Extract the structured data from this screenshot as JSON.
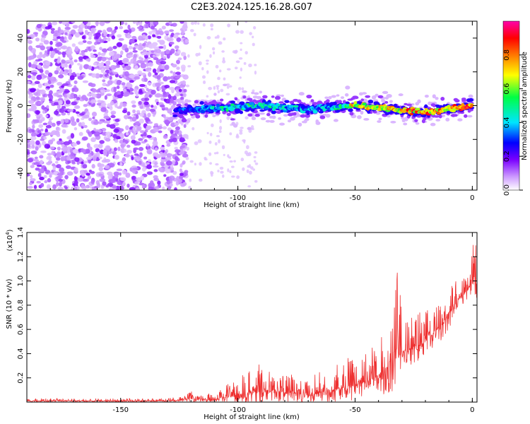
{
  "title": "C2E3.2024.125.16.28.G07",
  "chart_data": [
    {
      "type": "heatmap",
      "xlabel": "Height of straight line (km)",
      "ylabel": "Frequency (Hz)",
      "xlim": [
        -190,
        2
      ],
      "ylim": [
        -50,
        50
      ],
      "xticks": [
        -150,
        -100,
        -50,
        0
      ],
      "yticks": [
        -40,
        -20,
        0,
        20,
        40
      ],
      "grid": false,
      "colorbar": {
        "label": "Normalized spectral amplitude",
        "range": [
          0.0,
          1.0
        ],
        "ticks": [
          "0.0",
          "0.2",
          "0.4",
          "0.6",
          "0.8"
        ],
        "colormap": [
          "#ffffff",
          "#cc99ff",
          "#7a00ff",
          "#0000ff",
          "#00e5ff",
          "#00ff44",
          "#ffff00",
          "#ff7700",
          "#ff0000",
          "#ff00aa"
        ]
      },
      "ridge": {
        "x": [
          -127,
          -120,
          -110,
          -100,
          -90,
          -80,
          -70,
          -60,
          -55,
          -50,
          -40,
          -30,
          -20,
          -10,
          0
        ],
        "y": [
          -3,
          -2,
          -1.5,
          -1,
          0,
          -1,
          -2,
          -1.5,
          0,
          0,
          -1,
          -3,
          -4,
          -2,
          0
        ],
        "peak_amplitude": [
          0.35,
          0.45,
          0.5,
          0.55,
          0.55,
          0.5,
          0.45,
          0.5,
          0.6,
          0.8,
          0.75,
          0.85,
          0.9,
          0.85,
          0.95
        ]
      },
      "noise_extent_km": [
        -190,
        -122
      ]
    },
    {
      "type": "line",
      "xlabel": "Height of straight line (km)",
      "ylabel": "SNR (10 * v/v)",
      "y_multiplier": "(x10",
      "y_multiplier_exp": "4",
      "y_multiplier_close": ")",
      "xlim": [
        -190,
        2
      ],
      "ylim": [
        0,
        1.4
      ],
      "xticks": [
        -150,
        -100,
        -50,
        0
      ],
      "yticks": [
        "0.2",
        "0.4",
        "0.6",
        "0.8",
        "1.0",
        "1.2",
        "1.4"
      ],
      "grid": false,
      "color": "#ee3030",
      "envelope": {
        "x": [
          -190,
          -160,
          -130,
          -122,
          -120,
          -110,
          -105,
          -100,
          -95,
          -90,
          -80,
          -70,
          -60,
          -50,
          -45,
          -40,
          -36,
          -34,
          -32,
          -30,
          -25,
          -20,
          -15,
          -10,
          -8,
          -5,
          -2,
          0,
          2
        ],
        "base": [
          0.01,
          0.01,
          0.01,
          0.02,
          0.03,
          0.02,
          0.04,
          0.06,
          0.08,
          0.1,
          0.08,
          0.06,
          0.1,
          0.14,
          0.18,
          0.22,
          0.3,
          0.4,
          0.45,
          0.42,
          0.45,
          0.5,
          0.6,
          0.72,
          0.8,
          0.88,
          0.92,
          1.05,
          1.0
        ],
        "amp": [
          0.02,
          0.02,
          0.02,
          0.04,
          0.06,
          0.05,
          0.1,
          0.16,
          0.2,
          0.22,
          0.16,
          0.14,
          0.2,
          0.26,
          0.22,
          0.3,
          0.5,
          0.7,
          0.9,
          0.4,
          0.3,
          0.26,
          0.26,
          0.26,
          0.2,
          0.14,
          0.2,
          0.3,
          0.3
        ]
      }
    }
  ]
}
